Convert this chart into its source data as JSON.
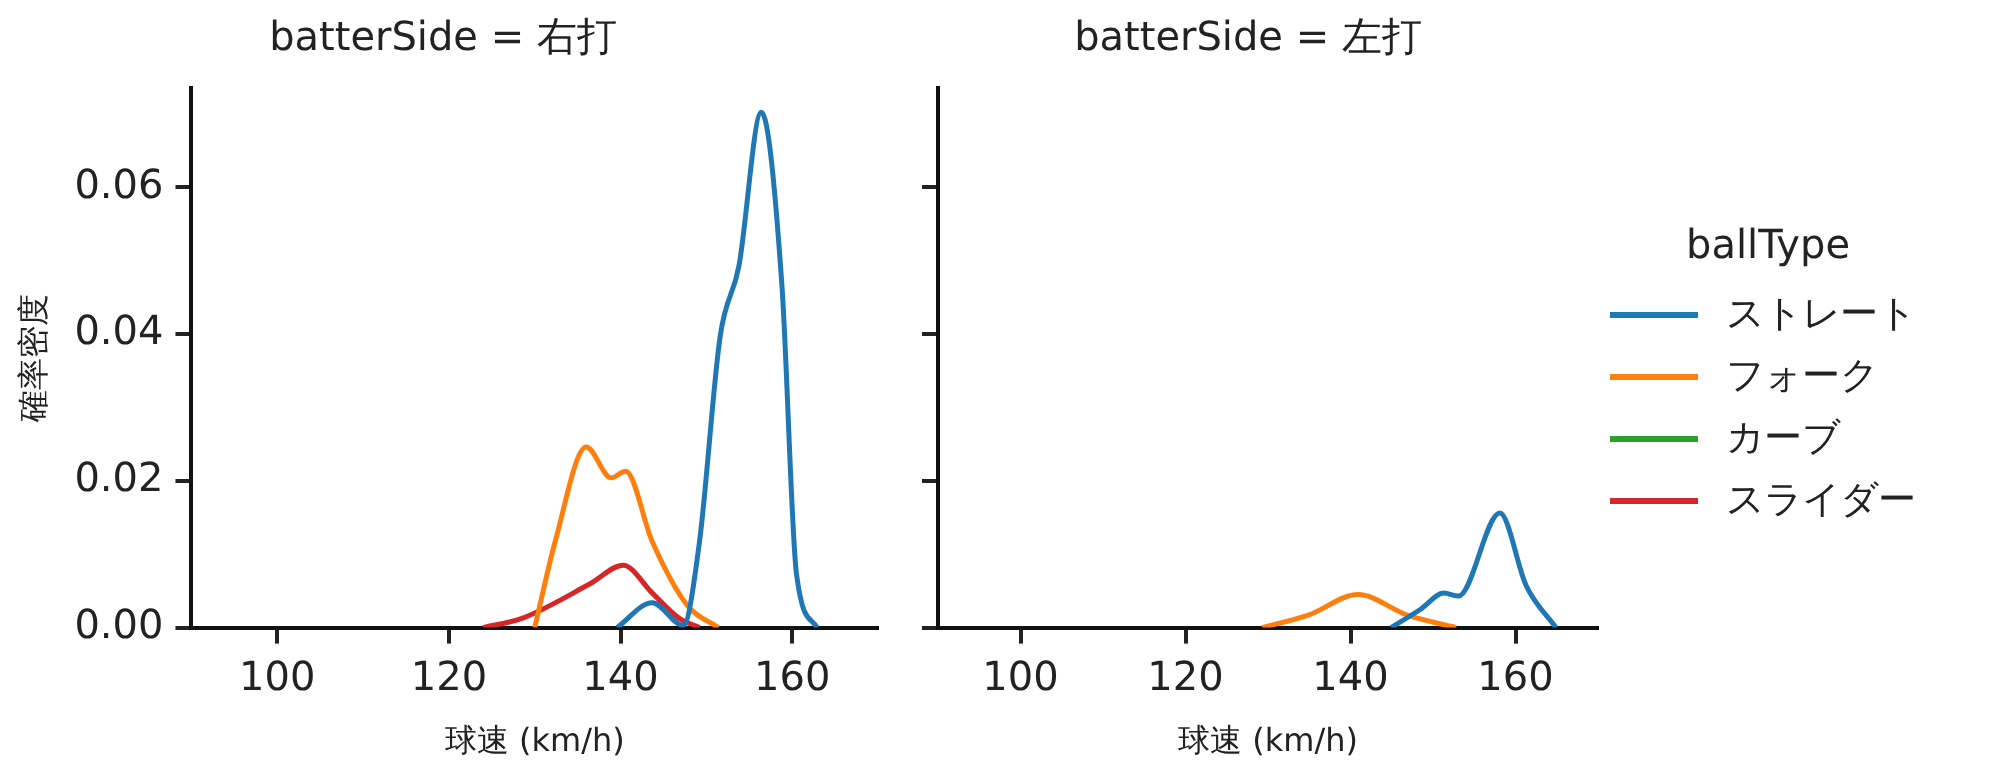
{
  "chart_data": [
    {
      "type": "line",
      "title": "batterSide = 右打",
      "xlabel": "球速 (km/h)",
      "ylabel": "確率密度",
      "xlim": [
        90,
        170
      ],
      "xticks": [
        100,
        120,
        140,
        160
      ],
      "ylim": [
        0,
        0.0735
      ],
      "yticks": [
        {
          "value": 0,
          "label": "0.00"
        },
        {
          "value": 0.02,
          "label": "0.02"
        },
        {
          "value": 0.04,
          "label": "0.04"
        },
        {
          "value": 0.06,
          "label": "0.06"
        }
      ],
      "grid": false,
      "series": [
        {
          "color": "#1f77b4",
          "x": [
            139.6,
            143.7,
            147.3,
            149.2,
            151.6,
            153.8,
            156.4,
            158.8,
            160.5,
            162.9
          ],
          "values": [
            0,
            0.0034,
            0.0003,
            0.0117,
            0.0396,
            0.0493,
            0.0702,
            0.0467,
            0.0073,
            0
          ]
        },
        {
          "color": "#ff7f0e",
          "x": [
            130,
            132.4,
            136,
            138.9,
            140.6,
            143.7,
            147.8,
            151.4
          ],
          "values": [
            0,
            0.0118,
            0.0246,
            0.0204,
            0.0213,
            0.0117,
            0.003,
            0
          ]
        },
        {
          "color": "#d62728",
          "x": [
            124,
            128.6,
            136.5,
            140.3,
            143.7,
            146.8,
            149.2
          ],
          "values": [
            0,
            0.0013,
            0.006,
            0.0085,
            0.0047,
            0.0013,
            0
          ]
        }
      ]
    },
    {
      "type": "line",
      "title": "batterSide = 左打",
      "xlabel": "球速 (km/h)",
      "xlim": [
        90,
        170
      ],
      "xticks": [
        100,
        120,
        140,
        160
      ],
      "ylim": [
        0,
        0.0735
      ],
      "yticks": [
        {
          "value": 0,
          "label": null
        },
        {
          "value": 0.02,
          "label": null
        },
        {
          "value": 0.04,
          "label": null
        },
        {
          "value": 0.06,
          "label": null
        }
      ],
      "tick_labels": "x",
      "grid": false,
      "legend": "right",
      "legend_title": "ballType",
      "series": [
        {
          "name": "ストレート",
          "color": "#1f77b4",
          "x": [
            144.9,
            148.5,
            151.3,
            153.1,
            158.1,
            161.3,
            164.9
          ],
          "values": [
            0,
            0.0025,
            0.0047,
            0.0043,
            0.0156,
            0.0057,
            0
          ]
        },
        {
          "name": "フォーク",
          "color": "#ff7f0e",
          "x": [
            129.3,
            134.9,
            140.9,
            146.9,
            152.8
          ],
          "values": [
            0,
            0.0017,
            0.0045,
            0.0017,
            0
          ]
        },
        {
          "name": "カーブ",
          "color": "#2ca02c"
        },
        {
          "name": "スライダー",
          "color": "#d62728"
        }
      ]
    }
  ]
}
